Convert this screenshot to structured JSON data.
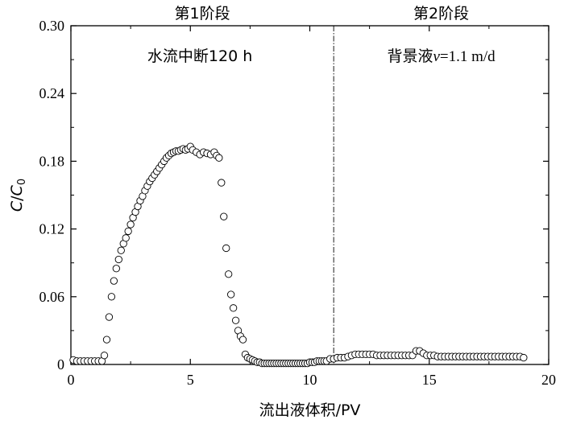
{
  "chart_data": {
    "type": "scatter",
    "xlabel": "流出液体积/PV",
    "ylabel": {
      "italic1": "C",
      "slash": "/",
      "italic2": "C",
      "sub": "0"
    },
    "xlim": [
      0,
      20
    ],
    "ylim": [
      0,
      0.3
    ],
    "xticks": [
      0,
      5,
      10,
      15,
      20
    ],
    "xtick_labels": [
      "0",
      "5",
      "10",
      "15",
      "20"
    ],
    "yticks": [
      0,
      0.06,
      0.12,
      0.18,
      0.24,
      0.3
    ],
    "ytick_labels": [
      "0",
      "0.06",
      "0.12",
      "0.18",
      "0.24",
      "0.30"
    ],
    "grid": false,
    "marker": "open-circle",
    "divider_x": 11,
    "phase_labels": [
      "第1阶段",
      "第2阶段"
    ],
    "annotations": {
      "phase1": "水流中断120 h",
      "phase2_prefix": "背景液",
      "phase2_var": "v",
      "phase2_suffix": "=1.1 m/d"
    },
    "series": [
      {
        "x": [
          0.1,
          0.25,
          0.4,
          0.55,
          0.7,
          0.85,
          1.0,
          1.15,
          1.3,
          1.4,
          1.5,
          1.6,
          1.7,
          1.8,
          1.9,
          2.0,
          2.1,
          2.2,
          2.3,
          2.4,
          2.5,
          2.6,
          2.7,
          2.8,
          2.9,
          3.0,
          3.1,
          3.2,
          3.3,
          3.4,
          3.5,
          3.6,
          3.7,
          3.8,
          3.9,
          4.0,
          4.1,
          4.2,
          4.3,
          4.4,
          4.5,
          4.6,
          4.7,
          4.8,
          4.9,
          5.0,
          5.1,
          5.25,
          5.4,
          5.55,
          5.7,
          5.85,
          6.0,
          6.1,
          6.2,
          6.3,
          6.4,
          6.5,
          6.6,
          6.7,
          6.8,
          6.9,
          7.0,
          7.1,
          7.2,
          7.3,
          7.4,
          7.5,
          7.6,
          7.7,
          7.8,
          7.9,
          8.0,
          8.1,
          8.2,
          8.3,
          8.4,
          8.5,
          8.6,
          8.7,
          8.8,
          8.9,
          9.0,
          9.1,
          9.2,
          9.3,
          9.4,
          9.5,
          9.6,
          9.7,
          9.8,
          9.9,
          10.0,
          10.1,
          10.2,
          10.3,
          10.4,
          10.5,
          10.6,
          10.7,
          10.85,
          11.0,
          11.15,
          11.3,
          11.45,
          11.6,
          11.75,
          11.9,
          12.05,
          12.2,
          12.35,
          12.5,
          12.65,
          12.8,
          12.95,
          13.1,
          13.25,
          13.4,
          13.55,
          13.7,
          13.85,
          14.0,
          14.15,
          14.3,
          14.45,
          14.6,
          14.75,
          14.9,
          15.05,
          15.2,
          15.35,
          15.5,
          15.65,
          15.8,
          15.95,
          16.1,
          16.25,
          16.4,
          16.55,
          16.7,
          16.85,
          17.0,
          17.15,
          17.3,
          17.45,
          17.6,
          17.75,
          17.9,
          18.05,
          18.2,
          18.35,
          18.5,
          18.65,
          18.8,
          18.95
        ],
        "y": [
          0.004,
          0.003,
          0.003,
          0.003,
          0.003,
          0.003,
          0.003,
          0.003,
          0.003,
          0.008,
          0.022,
          0.042,
          0.06,
          0.074,
          0.085,
          0.093,
          0.101,
          0.107,
          0.112,
          0.118,
          0.124,
          0.13,
          0.135,
          0.14,
          0.145,
          0.149,
          0.154,
          0.158,
          0.162,
          0.165,
          0.168,
          0.171,
          0.174,
          0.177,
          0.18,
          0.183,
          0.185,
          0.187,
          0.188,
          0.189,
          0.189,
          0.19,
          0.191,
          0.19,
          0.191,
          0.193,
          0.19,
          0.188,
          0.186,
          0.188,
          0.187,
          0.186,
          0.188,
          0.185,
          0.183,
          0.161,
          0.131,
          0.103,
          0.08,
          0.062,
          0.05,
          0.039,
          0.03,
          0.025,
          0.022,
          0.009,
          0.006,
          0.005,
          0.004,
          0.003,
          0.002,
          0.002,
          0.001,
          0.001,
          0.001,
          0.001,
          0.001,
          0.001,
          0.001,
          0.001,
          0.001,
          0.001,
          0.001,
          0.001,
          0.001,
          0.001,
          0.001,
          0.001,
          0.001,
          0.001,
          0.001,
          0.001,
          0.002,
          0.002,
          0.002,
          0.003,
          0.003,
          0.003,
          0.003,
          0.003,
          0.005,
          0.005,
          0.006,
          0.006,
          0.006,
          0.007,
          0.008,
          0.009,
          0.009,
          0.009,
          0.009,
          0.009,
          0.009,
          0.008,
          0.008,
          0.008,
          0.008,
          0.008,
          0.008,
          0.008,
          0.008,
          0.008,
          0.008,
          0.008,
          0.012,
          0.012,
          0.01,
          0.008,
          0.008,
          0.008,
          0.007,
          0.007,
          0.007,
          0.007,
          0.007,
          0.007,
          0.007,
          0.007,
          0.007,
          0.007,
          0.007,
          0.007,
          0.007,
          0.007,
          0.007,
          0.007,
          0.007,
          0.007,
          0.007,
          0.007,
          0.007,
          0.007,
          0.007,
          0.007,
          0.006
        ]
      }
    ]
  }
}
